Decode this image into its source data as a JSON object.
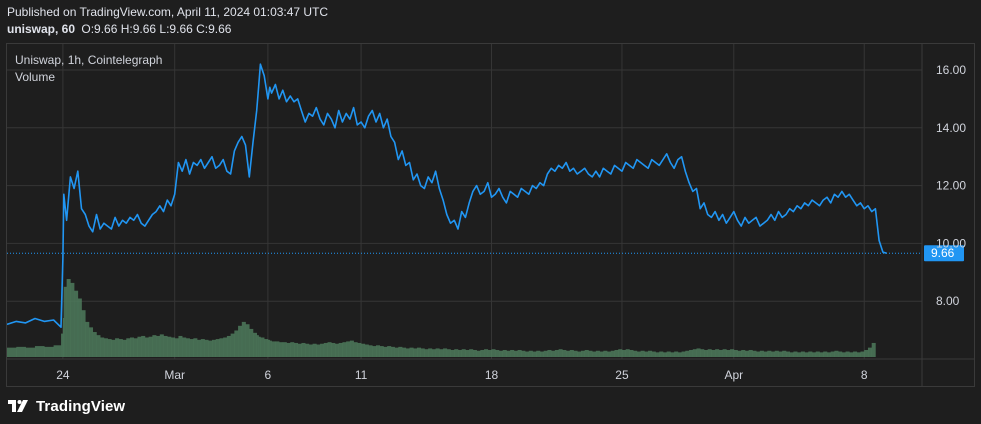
{
  "header": {
    "published": "Published on TradingView.com, April 11, 2024 01:03:47 UTC",
    "symbol_interval": "uniswap, 60",
    "ohlc": "O:9.66 H:9.66 L:9.66 C:9.66"
  },
  "legend": {
    "title": "Uniswap, 1h, Cointelegraph",
    "volume": "Volume"
  },
  "footer": {
    "brand": "TradingView",
    "logo_icon": "tradingview-logo-icon"
  },
  "colors": {
    "background": "#1e1e1e",
    "grid": "#363636",
    "price_line": "#2196f3",
    "volume": "#4e7a5c",
    "volume_last": "#5fa36f",
    "last_price_label": "#2196f3",
    "axis_text": "#d1d4dc"
  },
  "chart_data": [
    {
      "type": "line",
      "title": "Uniswap, 1h, Cointelegraph",
      "series_name": "uniswap",
      "ylim": [
        6.0,
        16.9
      ],
      "y_ticks": [
        "16.00",
        "14.00",
        "12.00",
        "10.00",
        "8.00"
      ],
      "y_tick_values": [
        16,
        14,
        12,
        10,
        8
      ],
      "x_ticks": [
        {
          "label": "24",
          "day": 3
        },
        {
          "label": "Mar",
          "day": 9
        },
        {
          "label": "6",
          "day": 14
        },
        {
          "label": "11",
          "day": 19
        },
        {
          "label": "18",
          "day": 26
        },
        {
          "label": "25",
          "day": 33
        },
        {
          "label": "Apr",
          "day": 39
        },
        {
          "label": "8",
          "day": 46
        }
      ],
      "x_range_days": [
        0,
        49.1
      ],
      "last_price": "9.66",
      "last_price_value": 9.66,
      "x_days": [
        0,
        0.5,
        1,
        1.5,
        2,
        2.5,
        2.9,
        3.0,
        3.05,
        3.2,
        3.4,
        3.6,
        3.8,
        4.0,
        4.2,
        4.4,
        4.6,
        4.8,
        5.0,
        5.2,
        5.4,
        5.6,
        5.8,
        6.0,
        6.2,
        6.4,
        6.6,
        6.8,
        7.0,
        7.2,
        7.4,
        7.6,
        7.8,
        8.0,
        8.2,
        8.4,
        8.6,
        8.8,
        9.0,
        9.2,
        9.4,
        9.6,
        9.8,
        10.0,
        10.2,
        10.4,
        10.6,
        10.8,
        11.0,
        11.2,
        11.4,
        11.6,
        11.8,
        12.0,
        12.2,
        12.4,
        12.6,
        12.8,
        13.0,
        13.2,
        13.4,
        13.5,
        13.6,
        13.8,
        14.0,
        14.1,
        14.2,
        14.4,
        14.6,
        14.8,
        15.0,
        15.2,
        15.4,
        15.6,
        15.8,
        16.0,
        16.2,
        16.4,
        16.6,
        16.8,
        17.0,
        17.2,
        17.4,
        17.6,
        17.8,
        18.0,
        18.2,
        18.4,
        18.6,
        18.8,
        19.0,
        19.2,
        19.4,
        19.6,
        19.8,
        20.0,
        20.2,
        20.4,
        20.6,
        20.8,
        21.0,
        21.2,
        21.4,
        21.6,
        21.8,
        22.0,
        22.2,
        22.4,
        22.6,
        22.8,
        23.0,
        23.2,
        23.4,
        23.6,
        23.8,
        24.0,
        24.2,
        24.4,
        24.6,
        24.8,
        25.0,
        25.2,
        25.4,
        25.6,
        25.8,
        26.0,
        26.2,
        26.4,
        26.6,
        26.8,
        27.0,
        27.2,
        27.4,
        27.6,
        27.8,
        28.0,
        28.2,
        28.4,
        28.6,
        28.8,
        29.0,
        29.2,
        29.4,
        29.6,
        29.8,
        30.0,
        30.2,
        30.4,
        30.6,
        30.8,
        31.0,
        31.2,
        31.4,
        31.6,
        31.8,
        32.0,
        32.2,
        32.4,
        32.6,
        32.8,
        33.0,
        33.2,
        33.4,
        33.6,
        33.8,
        34.0,
        34.2,
        34.4,
        34.6,
        34.8,
        35.0,
        35.2,
        35.4,
        35.6,
        35.8,
        36.0,
        36.2,
        36.4,
        36.6,
        36.8,
        37.0,
        37.2,
        37.4,
        37.6,
        37.8,
        38.0,
        38.2,
        38.4,
        38.6,
        38.8,
        39.0,
        39.2,
        39.4,
        39.6,
        39.8,
        40.0,
        40.2,
        40.4,
        40.6,
        40.8,
        41.0,
        41.2,
        41.4,
        41.6,
        41.8,
        42.0,
        42.2,
        42.4,
        42.6,
        42.8,
        43.0,
        43.2,
        43.4,
        43.6,
        43.8,
        44.0,
        44.2,
        44.4,
        44.6,
        44.8,
        45.0,
        45.2,
        45.4,
        45.6,
        45.8,
        46.0,
        46.2,
        46.4,
        46.6,
        46.8,
        47.0,
        47.2,
        47.4,
        47.6,
        47.8,
        48.0,
        48.2,
        48.4,
        48.6,
        48.8,
        49.0,
        49.1
      ],
      "price": [
        7.2,
        7.3,
        7.25,
        7.4,
        7.3,
        7.35,
        7.1,
        9.5,
        11.7,
        10.8,
        12.3,
        11.9,
        12.5,
        11.2,
        11.0,
        10.6,
        10.4,
        11.0,
        10.5,
        10.7,
        10.6,
        10.5,
        10.9,
        10.6,
        10.8,
        10.7,
        10.9,
        10.8,
        11.0,
        10.7,
        10.6,
        10.8,
        11.0,
        11.1,
        11.3,
        11.1,
        11.5,
        11.3,
        11.7,
        12.8,
        12.5,
        12.9,
        12.4,
        12.8,
        12.7,
        12.9,
        12.6,
        12.8,
        13.0,
        12.6,
        12.7,
        12.9,
        12.5,
        12.4,
        13.2,
        13.5,
        13.7,
        13.4,
        12.3,
        13.5,
        14.6,
        15.4,
        16.2,
        15.8,
        15.0,
        15.4,
        15.2,
        15.5,
        15.0,
        15.3,
        14.9,
        15.1,
        14.9,
        15.0,
        14.6,
        14.2,
        14.5,
        14.4,
        14.7,
        14.3,
        14.1,
        14.5,
        14.3,
        14.0,
        14.6,
        14.2,
        14.5,
        14.3,
        14.7,
        14.1,
        14.2,
        14.0,
        14.4,
        14.6,
        14.2,
        14.5,
        14.0,
        14.3,
        13.7,
        13.5,
        12.9,
        13.2,
        12.7,
        12.8,
        12.2,
        12.4,
        12.0,
        11.9,
        12.3,
        12.1,
        12.5,
        11.9,
        11.5,
        11.0,
        10.7,
        10.8,
        10.5,
        11.1,
        10.9,
        11.4,
        11.8,
        12.0,
        11.7,
        11.8,
        12.1,
        11.6,
        11.7,
        11.9,
        11.6,
        11.4,
        11.8,
        11.7,
        11.6,
        11.9,
        11.8,
        11.7,
        12.0,
        11.9,
        12.1,
        12.0,
        12.4,
        12.6,
        12.5,
        12.7,
        12.6,
        12.8,
        12.5,
        12.6,
        12.4,
        12.5,
        12.6,
        12.4,
        12.3,
        12.5,
        12.3,
        12.6,
        12.5,
        12.4,
        12.7,
        12.6,
        12.5,
        12.8,
        12.7,
        12.6,
        12.9,
        12.8,
        12.7,
        12.6,
        12.9,
        12.8,
        12.7,
        12.9,
        13.1,
        12.8,
        12.6,
        12.9,
        13.0,
        12.5,
        12.1,
        11.8,
        11.9,
        11.2,
        11.4,
        11.0,
        10.9,
        11.1,
        10.8,
        11.0,
        10.7,
        10.9,
        11.1,
        10.8,
        10.6,
        10.9,
        10.7,
        10.8,
        10.9,
        10.6,
        10.7,
        10.8,
        11.0,
        10.8,
        11.1,
        10.9,
        11.0,
        11.2,
        11.1,
        11.3,
        11.2,
        11.4,
        11.3,
        11.5,
        11.4,
        11.3,
        11.5,
        11.6,
        11.4,
        11.7,
        11.6,
        11.8,
        11.6,
        11.7,
        11.5,
        11.3,
        11.4,
        11.2,
        11.3,
        11.1,
        11.2,
        10.1,
        9.7,
        9.66
      ],
      "volume_relative": [
        0.12,
        0.13,
        0.12,
        0.14,
        0.13,
        0.15,
        0.3,
        0.5,
        0.9,
        1.0,
        0.95,
        0.85,
        0.75,
        0.6,
        0.45,
        0.38,
        0.32,
        0.28,
        0.25,
        0.24,
        0.23,
        0.22,
        0.24,
        0.23,
        0.22,
        0.24,
        0.25,
        0.24,
        0.26,
        0.27,
        0.25,
        0.26,
        0.28,
        0.27,
        0.29,
        0.27,
        0.26,
        0.25,
        0.24,
        0.27,
        0.25,
        0.24,
        0.23,
        0.24,
        0.22,
        0.23,
        0.22,
        0.21,
        0.22,
        0.23,
        0.24,
        0.25,
        0.27,
        0.3,
        0.34,
        0.4,
        0.45,
        0.42,
        0.36,
        0.31,
        0.28,
        0.26,
        0.25,
        0.23,
        0.22,
        0.21,
        0.2,
        0.2,
        0.19,
        0.19,
        0.18,
        0.19,
        0.18,
        0.17,
        0.18,
        0.17,
        0.16,
        0.17,
        0.16,
        0.17,
        0.18,
        0.19,
        0.18,
        0.17,
        0.18,
        0.19,
        0.2,
        0.21,
        0.19,
        0.18,
        0.17,
        0.16,
        0.15,
        0.14,
        0.15,
        0.14,
        0.13,
        0.14,
        0.13,
        0.12,
        0.13,
        0.12,
        0.11,
        0.12,
        0.11,
        0.12,
        0.11,
        0.1,
        0.11,
        0.1,
        0.11,
        0.1,
        0.11,
        0.1,
        0.09,
        0.1,
        0.09,
        0.1,
        0.09,
        0.1,
        0.09,
        0.08,
        0.09,
        0.1,
        0.09,
        0.1,
        0.09,
        0.08,
        0.09,
        0.08,
        0.09,
        0.08,
        0.09,
        0.08,
        0.07,
        0.08,
        0.07,
        0.08,
        0.07,
        0.08,
        0.09,
        0.08,
        0.09,
        0.1,
        0.09,
        0.08,
        0.09,
        0.08,
        0.07,
        0.08,
        0.09,
        0.08,
        0.07,
        0.08,
        0.07,
        0.08,
        0.07,
        0.08,
        0.09,
        0.1,
        0.09,
        0.1,
        0.09,
        0.08,
        0.07,
        0.08,
        0.07,
        0.08,
        0.07,
        0.06,
        0.07,
        0.06,
        0.07,
        0.06,
        0.07,
        0.06,
        0.07,
        0.08,
        0.09,
        0.1,
        0.11,
        0.1,
        0.09,
        0.1,
        0.09,
        0.1,
        0.09,
        0.1,
        0.09,
        0.1,
        0.09,
        0.08,
        0.09,
        0.08,
        0.09,
        0.08,
        0.07,
        0.08,
        0.07,
        0.08,
        0.07,
        0.08,
        0.07,
        0.08,
        0.07,
        0.06,
        0.07,
        0.06,
        0.07,
        0.06,
        0.07,
        0.06,
        0.07,
        0.06,
        0.07,
        0.06,
        0.07,
        0.08,
        0.07,
        0.06,
        0.07,
        0.06,
        0.07,
        0.06,
        0.07,
        0.09,
        0.12,
        0.18
      ]
    }
  ]
}
